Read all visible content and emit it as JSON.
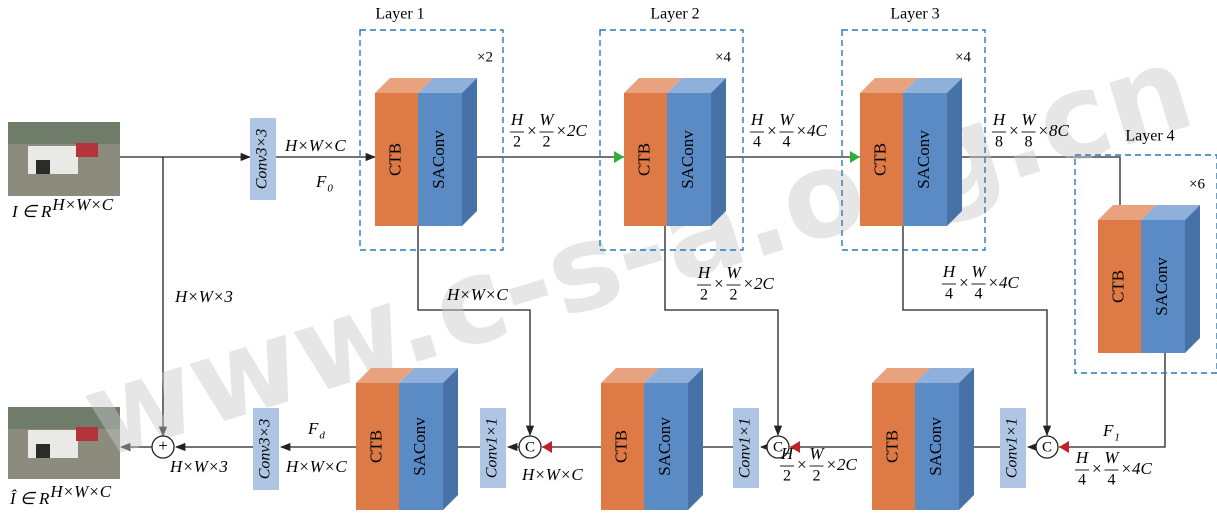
{
  "layers": [
    {
      "title": "Layer 1",
      "repeat": "×2"
    },
    {
      "title": "Layer 2",
      "repeat": "×4"
    },
    {
      "title": "Layer 3",
      "repeat": "×4"
    },
    {
      "title": "Layer 4",
      "repeat": "×6"
    }
  ],
  "blocks": [
    {
      "ctb": "CTB",
      "saconv": "SAConv"
    },
    {
      "ctb": "CTB",
      "saconv": "SAConv"
    },
    {
      "ctb": "CTB",
      "saconv": "SAConv"
    },
    {
      "ctb": "CTB",
      "saconv": "SAConv"
    },
    {
      "ctb": "CTB",
      "saconv": "SAConv"
    },
    {
      "ctb": "CTB",
      "saconv": "SAConv"
    },
    {
      "ctb": "CTB",
      "saconv": "SAConv"
    }
  ],
  "convs": [
    "Conv3×3",
    "Conv3×3",
    "Conv1×1",
    "Conv1×1",
    "Conv1×1"
  ],
  "concat": [
    "C",
    "C",
    "C"
  ],
  "plus": "+",
  "input_label": {
    "base": "I ∈ R",
    "sup": "H×W×C"
  },
  "output_label": {
    "base": "Î ∈ R",
    "sup": "H×W×C"
  },
  "features": [
    {
      "base": "F",
      "sub": "0"
    },
    {
      "base": "F",
      "sub": "d"
    },
    {
      "base": "F",
      "sub": "1"
    }
  ],
  "dims": [
    {
      "text": "H×W×C"
    },
    {
      "parts": [
        {
          "num": "H",
          "den": "2"
        },
        {
          "text": "×"
        },
        {
          "num": "W",
          "den": "2"
        },
        {
          "text": "×2C"
        }
      ]
    },
    {
      "parts": [
        {
          "num": "H",
          "den": "4"
        },
        {
          "text": "×"
        },
        {
          "num": "W",
          "den": "4"
        },
        {
          "text": "×4C"
        }
      ]
    },
    {
      "parts": [
        {
          "num": "H",
          "den": "8"
        },
        {
          "text": "×"
        },
        {
          "num": "W",
          "den": "8"
        },
        {
          "text": "×8C"
        }
      ]
    },
    {
      "text": "H×W×3"
    },
    {
      "text": "H×W×C"
    },
    {
      "parts": [
        {
          "num": "H",
          "den": "2"
        },
        {
          "text": "×"
        },
        {
          "num": "W",
          "den": "2"
        },
        {
          "text": "×2C"
        }
      ]
    },
    {
      "parts": [
        {
          "num": "H",
          "den": "4"
        },
        {
          "text": "×"
        },
        {
          "num": "W",
          "den": "4"
        },
        {
          "text": "×4C"
        }
      ]
    },
    {
      "parts": [
        {
          "num": "H",
          "den": "4"
        },
        {
          "text": "×"
        },
        {
          "num": "W",
          "den": "4"
        },
        {
          "text": "×4C"
        }
      ]
    },
    {
      "text": "H×W×C"
    },
    {
      "text": "H×W×3"
    },
    {
      "text": "H×W×C"
    },
    {
      "parts": [
        {
          "num": "H",
          "den": "2"
        },
        {
          "text": "×"
        },
        {
          "num": "W",
          "den": "2"
        },
        {
          "text": "×2C"
        }
      ]
    }
  ],
  "watermark": "www.c-s-a.org.cn"
}
